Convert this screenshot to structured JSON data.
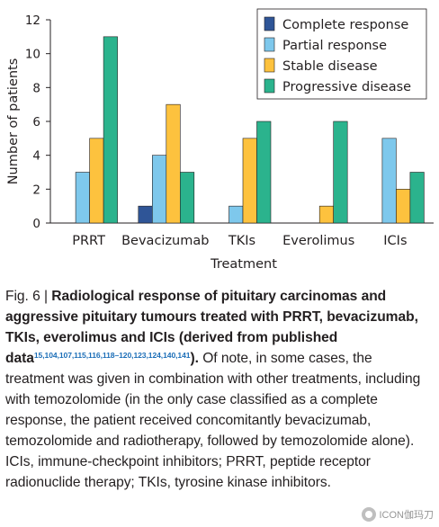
{
  "chart_data": {
    "type": "bar",
    "title": "",
    "xlabel": "Treatment",
    "ylabel": "Number of patients",
    "ylim": [
      0,
      12
    ],
    "yticks": [
      0,
      2,
      4,
      6,
      8,
      10,
      12
    ],
    "grid": false,
    "legend_position": "top-right",
    "categories": [
      "PRRT",
      "Bevacizumab",
      "TKIs",
      "Everolimus",
      "ICIs"
    ],
    "series": [
      {
        "name": "Complete response",
        "color": "#2f5597",
        "values": [
          0,
          1,
          0,
          0,
          0
        ]
      },
      {
        "name": "Partial response",
        "color": "#7ec8ec",
        "values": [
          3,
          4,
          1,
          0,
          5
        ]
      },
      {
        "name": "Stable disease",
        "color": "#fdc23e",
        "values": [
          5,
          7,
          5,
          1,
          2
        ]
      },
      {
        "name": "Progressive disease",
        "color": "#2bb38d",
        "values": [
          11,
          3,
          6,
          6,
          3
        ]
      }
    ]
  },
  "caption": {
    "fig_label": "Fig. 6 | ",
    "bold_text": "Radiological response of pituitary carcinomas and aggressive pituitary tumours treated with PRRT, bevacizumab, TKIs, everolimus and ICIs (derived from published data",
    "refs": "15,104,107,115,116,118–120,123,124,140,141",
    "bold_end": ").",
    "body": " Of note, in some cases, the treatment was given in combination with other treatments, including with temozolomide (in the only case classified as a complete response, the patient received concomitantly bevacizumab, temozolomide and radiotherapy, followed by temozolomide alone). ICIs, immune-checkpoint inhibitors; PRRT, peptide receptor radionuclide therapy; TKIs, tyrosine kinase inhibitors."
  },
  "watermark": {
    "text": "ICON伽玛刀"
  }
}
